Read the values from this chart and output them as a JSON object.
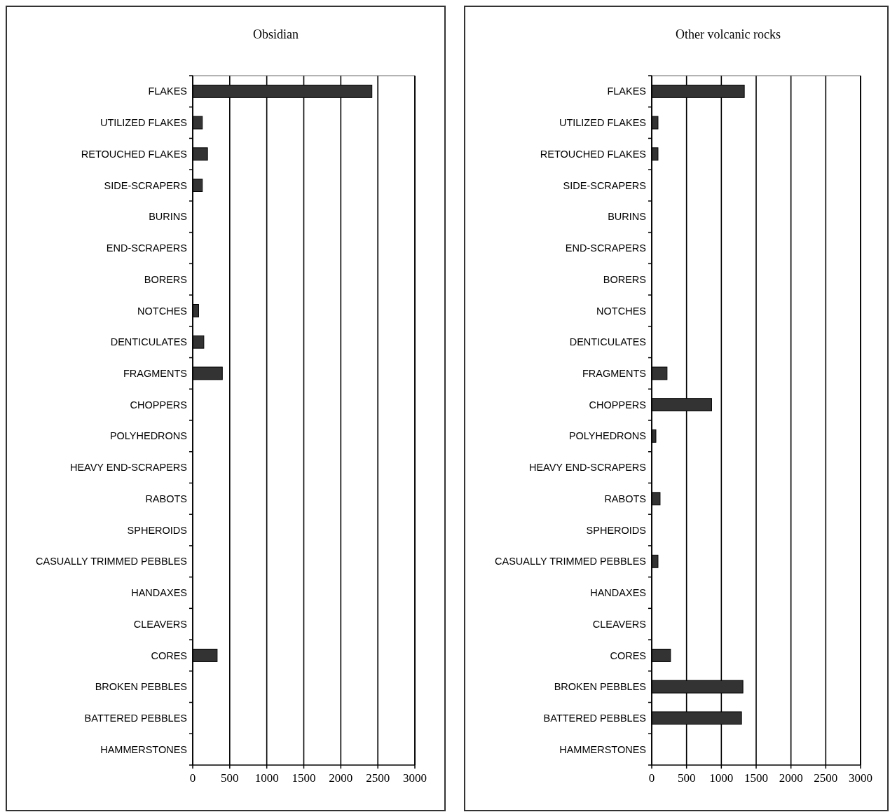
{
  "chart_data": [
    {
      "type": "bar",
      "orientation": "horizontal",
      "title": "Obsidian",
      "categories": [
        "FLAKES",
        "UTILIZED FLAKES",
        "RETOUCHED FLAKES",
        "SIDE-SCRAPERS",
        "BURINS",
        "END-SCRAPERS",
        "BORERS",
        "NOTCHES",
        "DENTICULATES",
        "FRAGMENTS",
        "CHOPPERS",
        "POLYHEDRONS",
        "HEAVY END-SCRAPERS",
        "RABOTS",
        "SPHEROIDS",
        "CASUALLY TRIMMED PEBBLES",
        "HANDAXES",
        "CLEAVERS",
        "CORES",
        "BROKEN PEBBLES",
        "BATTERED PEBBLES",
        "HAMMERSTONES"
      ],
      "values": [
        2420,
        130,
        200,
        130,
        0,
        0,
        0,
        80,
        150,
        400,
        0,
        0,
        0,
        0,
        0,
        0,
        0,
        0,
        330,
        0,
        0,
        0
      ],
      "color": "#333333",
      "xlim": [
        0,
        3000
      ],
      "xticks": [
        0,
        500,
        1000,
        1500,
        2000,
        2500,
        3000
      ],
      "grid": "x"
    },
    {
      "type": "bar",
      "orientation": "horizontal",
      "title": "Other volcanic rocks",
      "categories": [
        "FLAKES",
        "UTILIZED FLAKES",
        "RETOUCHED FLAKES",
        "SIDE-SCRAPERS",
        "BURINS",
        "END-SCRAPERS",
        "BORERS",
        "NOTCHES",
        "DENTICULATES",
        "FRAGMENTS",
        "CHOPPERS",
        "POLYHEDRONS",
        "HEAVY END-SCRAPERS",
        "RABOTS",
        "SPHEROIDS",
        "CASUALLY TRIMMED PEBBLES",
        "HANDAXES",
        "CLEAVERS",
        "CORES",
        "BROKEN PEBBLES",
        "BATTERED PEBBLES",
        "HAMMERSTONES"
      ],
      "values": [
        1330,
        90,
        90,
        0,
        0,
        0,
        0,
        0,
        0,
        220,
        860,
        60,
        0,
        120,
        0,
        90,
        0,
        0,
        270,
        1310,
        1290,
        0
      ],
      "color": "#333333",
      "xlim": [
        0,
        3000
      ],
      "xticks": [
        0,
        500,
        1000,
        1500,
        2000,
        2500,
        3000
      ],
      "grid": "x"
    }
  ]
}
